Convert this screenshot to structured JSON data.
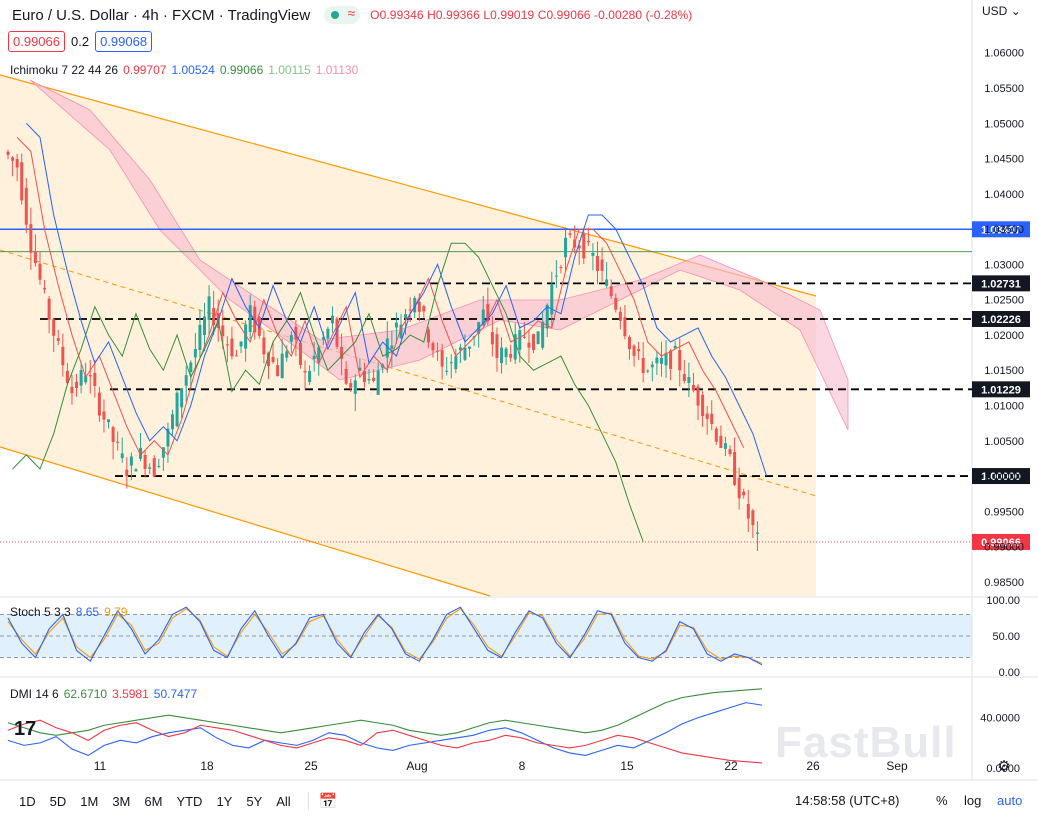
{
  "header": {
    "symbol": "Euro / U.S. Dollar · 4h · FXCM · TradingView",
    "o": "O0.99346",
    "h": "H0.99366",
    "l": "L0.99019",
    "c": "C0.99066",
    "chg": "-0.00280 (-0.28%)",
    "sell_price": "0.99066",
    "spread": "0.2",
    "buy_price": "0.99068",
    "currency": "USD"
  },
  "ichimoku": {
    "label": "Ichimoku 7 22 44 26",
    "v1": "0.99707",
    "v2": "1.00524",
    "v3": "0.99066",
    "v4": "1.00115",
    "v5": "1.01130",
    "colors": [
      "#f23645",
      "#2962ff",
      "#388e3c",
      "#81c784",
      "#f48fb1"
    ]
  },
  "stoch": {
    "label": "Stoch 5 3 3",
    "k": "8.65",
    "d": "9.79",
    "k_color": "#2962ff",
    "d_color": "#ff9800"
  },
  "dmi": {
    "label": "DMI 14 6",
    "adx": "62.6710",
    "minus": "3.5981",
    "plus": "50.7477",
    "adx_color": "#388e3c",
    "minus_color": "#f23645",
    "plus_color": "#2962ff"
  },
  "bottom_bar": {
    "timeframes": [
      "1D",
      "5D",
      "1M",
      "3M",
      "6M",
      "YTD",
      "1Y",
      "5Y",
      "All"
    ],
    "time": "14:58:58 (UTC+8)",
    "percent": "%",
    "log": "log",
    "auto": "auto"
  },
  "watermark": "FastBull",
  "chart_data": {
    "type": "candlestick",
    "x_ticks": [
      "11",
      "18",
      "25",
      "Aug",
      "8",
      "15",
      "22",
      "26",
      "Sep"
    ],
    "y_ticks": [
      "1.06000",
      "1.05500",
      "1.05000",
      "1.04500",
      "1.04000",
      "1.03500",
      "1.03000",
      "1.02500",
      "1.02000",
      "1.01500",
      "1.01000",
      "1.00500",
      "1.00000",
      "0.99500",
      "0.99000",
      "0.98500"
    ],
    "ylim": [
      0.983,
      1.0635
    ],
    "horizontal_levels": [
      {
        "value": 1.03497,
        "label": "1.03497",
        "style": "solid",
        "color": "#2962ff"
      },
      {
        "value": 1.02731,
        "label": "1.02731",
        "style": "dashed",
        "color": "#000000"
      },
      {
        "value": 1.02226,
        "label": "1.02226",
        "style": "dashed",
        "color": "#000000"
      },
      {
        "value": 1.01229,
        "label": "1.01229",
        "style": "dashed",
        "color": "#000000"
      },
      {
        "value": 1.0,
        "label": "1.00000",
        "style": "dashed",
        "color": "#000000"
      }
    ],
    "last_price": {
      "value": 0.99066,
      "label": "0.99066",
      "color": "#f23645"
    },
    "close_path": [
      {
        "t": 0,
        "c": 1.046
      },
      {
        "t": 3,
        "c": 1.044
      },
      {
        "t": 6,
        "c": 1.033
      },
      {
        "t": 9,
        "c": 1.025
      },
      {
        "t": 12,
        "c": 1.018
      },
      {
        "t": 15,
        "c": 1.012
      },
      {
        "t": 18,
        "c": 1.015
      },
      {
        "t": 21,
        "c": 1.01
      },
      {
        "t": 24,
        "c": 1.005
      },
      {
        "t": 27,
        "c": 1.001
      },
      {
        "t": 30,
        "c": 1.003
      },
      {
        "t": 33,
        "c": 1.001
      },
      {
        "t": 36,
        "c": 1.006
      },
      {
        "t": 39,
        "c": 1.013
      },
      {
        "t": 42,
        "c": 1.018
      },
      {
        "t": 45,
        "c": 1.024
      },
      {
        "t": 48,
        "c": 1.02
      },
      {
        "t": 51,
        "c": 1.017
      },
      {
        "t": 54,
        "c": 1.023
      },
      {
        "t": 57,
        "c": 1.018
      },
      {
        "t": 60,
        "c": 1.015
      },
      {
        "t": 63,
        "c": 1.02
      },
      {
        "t": 66,
        "c": 1.014
      },
      {
        "t": 69,
        "c": 1.018
      },
      {
        "t": 72,
        "c": 1.022
      },
      {
        "t": 75,
        "c": 1.012
      },
      {
        "t": 78,
        "c": 1.015
      },
      {
        "t": 81,
        "c": 1.013
      },
      {
        "t": 84,
        "c": 1.019
      },
      {
        "t": 87,
        "c": 1.022
      },
      {
        "t": 90,
        "c": 1.026
      },
      {
        "t": 93,
        "c": 1.02
      },
      {
        "t": 96,
        "c": 1.015
      },
      {
        "t": 99,
        "c": 1.017
      },
      {
        "t": 102,
        "c": 1.019
      },
      {
        "t": 105,
        "c": 1.023
      },
      {
        "t": 108,
        "c": 1.017
      },
      {
        "t": 111,
        "c": 1.018
      },
      {
        "t": 114,
        "c": 1.02
      },
      {
        "t": 117,
        "c": 1.019
      },
      {
        "t": 120,
        "c": 1.027
      },
      {
        "t": 123,
        "c": 1.033
      },
      {
        "t": 126,
        "c": 1.033
      },
      {
        "t": 129,
        "c": 1.031
      },
      {
        "t": 132,
        "c": 1.027
      },
      {
        "t": 135,
        "c": 1.023
      },
      {
        "t": 138,
        "c": 1.017
      },
      {
        "t": 141,
        "c": 1.015
      },
      {
        "t": 144,
        "c": 1.016
      },
      {
        "t": 147,
        "c": 1.017
      },
      {
        "t": 150,
        "c": 1.013
      },
      {
        "t": 153,
        "c": 1.01
      },
      {
        "t": 156,
        "c": 1.006
      },
      {
        "t": 159,
        "c": 1.002
      },
      {
        "t": 162,
        "c": 0.996
      },
      {
        "t": 165,
        "c": 0.9907
      }
    ],
    "stoch_k": [
      75,
      40,
      20,
      60,
      80,
      30,
      15,
      50,
      85,
      60,
      25,
      45,
      80,
      90,
      70,
      30,
      20,
      60,
      85,
      50,
      20,
      40,
      75,
      80,
      40,
      20,
      55,
      80,
      60,
      25,
      15,
      45,
      80,
      90,
      60,
      30,
      20,
      55,
      85,
      75,
      40,
      20,
      50,
      85,
      80,
      40,
      20,
      15,
      30,
      70,
      60,
      25,
      15,
      25,
      20,
      10
    ],
    "stoch_d": [
      70,
      45,
      25,
      55,
      75,
      35,
      20,
      45,
      80,
      65,
      30,
      40,
      75,
      88,
      72,
      35,
      22,
      55,
      80,
      55,
      25,
      38,
      70,
      78,
      45,
      22,
      50,
      78,
      62,
      28,
      18,
      42,
      75,
      88,
      65,
      35,
      22,
      50,
      82,
      78,
      45,
      22,
      45,
      80,
      82,
      45,
      22,
      18,
      28,
      65,
      62,
      30,
      18,
      22,
      20,
      12
    ],
    "dmi_plus": [
      22,
      18,
      20,
      25,
      15,
      10,
      18,
      22,
      20,
      25,
      28,
      30,
      32,
      24,
      18,
      16,
      22,
      20,
      18,
      22,
      28,
      26,
      20,
      16,
      14,
      18,
      20,
      22,
      24,
      26,
      30,
      32,
      28,
      22,
      16,
      12,
      10,
      14,
      18,
      16,
      22,
      28,
      35,
      40,
      44,
      48,
      52,
      50
    ],
    "dmi_minus": [
      30,
      35,
      38,
      32,
      28,
      22,
      30,
      34,
      36,
      30,
      25,
      28,
      34,
      32,
      30,
      26,
      22,
      18,
      16,
      20,
      24,
      22,
      18,
      28,
      30,
      26,
      22,
      18,
      16,
      20,
      22,
      26,
      24,
      20,
      18,
      16,
      18,
      22,
      26,
      24,
      20,
      16,
      12,
      10,
      8,
      6,
      5,
      4
    ],
    "dmi_adx": [
      36,
      32,
      28,
      26,
      28,
      30,
      34,
      36,
      38,
      40,
      42,
      40,
      38,
      36,
      34,
      32,
      30,
      28,
      30,
      32,
      34,
      36,
      38,
      36,
      34,
      30,
      28,
      26,
      28,
      32,
      36,
      38,
      36,
      34,
      32,
      30,
      28,
      30,
      34,
      40,
      46,
      52,
      56,
      58,
      60,
      61,
      62,
      63
    ]
  }
}
